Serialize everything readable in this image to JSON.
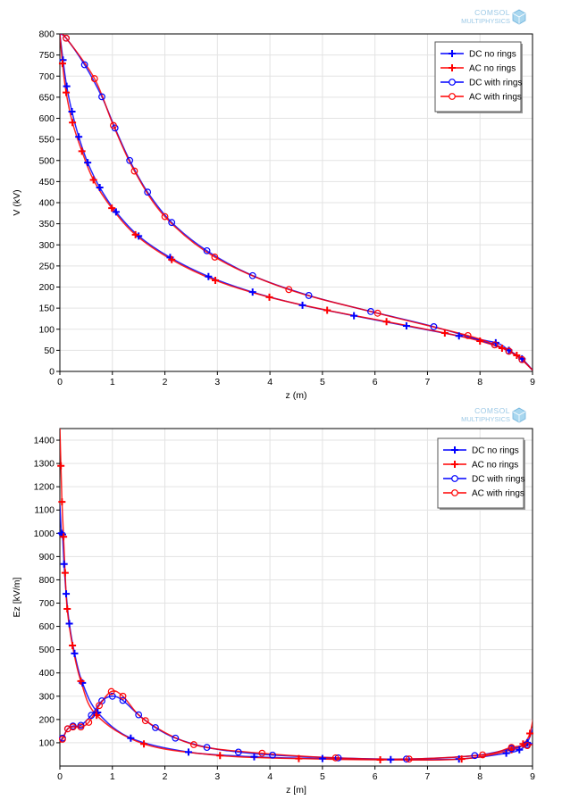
{
  "logo": {
    "line1": "COMSOL",
    "line2": "MULTIPHYSICS"
  },
  "chart_data": [
    {
      "type": "line",
      "xlabel": "z (m)",
      "ylabel": "V (kV)",
      "xlim": [
        0,
        9
      ],
      "ylim": [
        0,
        800
      ],
      "xticks": [
        0,
        1,
        2,
        3,
        4,
        5,
        6,
        7,
        8,
        9
      ],
      "yticks": [
        0,
        50,
        100,
        150,
        200,
        250,
        300,
        350,
        400,
        450,
        500,
        550,
        600,
        650,
        700,
        750,
        800
      ],
      "grid": true,
      "legend_position": "top-right",
      "series": [
        {
          "name": "DC  no rings",
          "color": "#0000ff",
          "marker": "plus",
          "x": [
            0,
            0.06,
            0.13,
            0.23,
            0.36,
            0.53,
            0.76,
            1.07,
            1.5,
            2.1,
            2.83,
            3.67,
            4.62,
            5.6,
            6.6,
            7.6,
            8.3,
            8.55,
            8.8,
            9.0
          ],
          "y": [
            800,
            738,
            676,
            616,
            556,
            495,
            436,
            378,
            321,
            270,
            225,
            188,
            157,
            132,
            108,
            84,
            68,
            50,
            30,
            3
          ]
        },
        {
          "name": "AC  no rings",
          "color": "#ff0000",
          "marker": "plus",
          "x": [
            0,
            0.05,
            0.12,
            0.24,
            0.42,
            0.64,
            0.99,
            1.44,
            2.13,
            2.96,
            3.99,
            5.09,
            6.22,
            7.33,
            8.0,
            8.42,
            8.7,
            9.0
          ],
          "y": [
            800,
            730,
            661,
            590,
            522,
            454,
            387,
            324,
            265,
            216,
            176,
            145,
            118,
            91,
            72,
            55,
            38,
            3
          ]
        },
        {
          "name": "DC  with rings",
          "color": "#0000ff",
          "marker": "circle",
          "x": [
            0,
            0.12,
            0.47,
            0.8,
            1.05,
            1.33,
            1.67,
            2.13,
            2.8,
            3.67,
            4.74,
            5.92,
            7.12,
            8.28,
            8.55,
            8.8,
            9.0
          ],
          "y": [
            800,
            790,
            727,
            651,
            577,
            500,
            425,
            353,
            286,
            227,
            180,
            142,
            106,
            63,
            48,
            28,
            3
          ]
        },
        {
          "name": "AC  with rings",
          "color": "#ff0000",
          "marker": "circle",
          "x": [
            0,
            0.12,
            0.66,
            1.02,
            1.42,
            2.0,
            2.95,
            4.36,
            6.05,
            7.77,
            8.28,
            8.55,
            8.8,
            9.0
          ],
          "y": [
            800,
            790,
            694,
            583,
            475,
            367,
            271,
            194,
            138,
            85,
            63,
            48,
            28,
            3
          ]
        }
      ]
    },
    {
      "type": "line",
      "xlabel": "z  [m]",
      "ylabel": "Ez    [kV/m]",
      "xlim": [
        0,
        9
      ],
      "ylim": [
        0,
        1450
      ],
      "xticks": [
        0,
        1,
        2,
        3,
        4,
        5,
        6,
        7,
        8,
        9
      ],
      "yticks": [
        100,
        200,
        300,
        400,
        500,
        600,
        700,
        800,
        900,
        1000,
        1100,
        1200,
        1300,
        1400
      ],
      "grid": true,
      "legend_position": "top-right",
      "series": [
        {
          "name": "DC no rings",
          "color": "#0000ff",
          "marker": "plus",
          "x": [
            0,
            0.03,
            0.05,
            0.08,
            0.12,
            0.18,
            0.28,
            0.43,
            0.72,
            1.35,
            2.45,
            3.7,
            5.0,
            6.3,
            7.6,
            8.5,
            8.75,
            8.9,
            9.05
          ],
          "y": [
            1120,
            1000,
            995,
            868,
            740,
            612,
            484,
            357,
            230,
            120,
            60,
            40,
            32,
            28,
            30,
            55,
            70,
            100,
            190
          ]
        },
        {
          "name": "AC no rings",
          "color": "#ff0000",
          "marker": "plus",
          "x": [
            0,
            0.02,
            0.04,
            0.07,
            0.1,
            0.14,
            0.24,
            0.4,
            0.7,
            1.6,
            3.05,
            4.55,
            6.1,
            7.65,
            8.6,
            8.82,
            8.95,
            9.05
          ],
          "y": [
            1450,
            1290,
            1135,
            985,
            830,
            675,
            518,
            365,
            218,
            95,
            45,
            32,
            27,
            30,
            70,
            95,
            140,
            250
          ]
        },
        {
          "name": "DC with rings",
          "color": "#0000ff",
          "marker": "circle",
          "x": [
            0,
            0.05,
            0.15,
            0.25,
            0.4,
            0.6,
            0.8,
            1.0,
            1.2,
            1.5,
            1.82,
            2.2,
            2.8,
            3.4,
            4.05,
            5.3,
            6.6,
            7.9,
            8.6,
            8.9,
            9.05
          ],
          "y": [
            110,
            120,
            160,
            172,
            175,
            218,
            280,
            300,
            282,
            220,
            165,
            120,
            80,
            60,
            47,
            35,
            30,
            45,
            75,
            92,
            100
          ]
        },
        {
          "name": "AC with rings",
          "color": "#ff0000",
          "marker": "circle",
          "x": [
            0,
            0.05,
            0.15,
            0.25,
            0.4,
            0.55,
            0.75,
            0.98,
            1.2,
            1.63,
            2.55,
            3.85,
            5.25,
            6.65,
            8.05,
            8.6,
            8.9,
            9.05
          ],
          "y": [
            100,
            115,
            160,
            168,
            168,
            188,
            260,
            320,
            300,
            195,
            92,
            55,
            35,
            30,
            48,
            80,
            88,
            95
          ]
        }
      ]
    }
  ]
}
